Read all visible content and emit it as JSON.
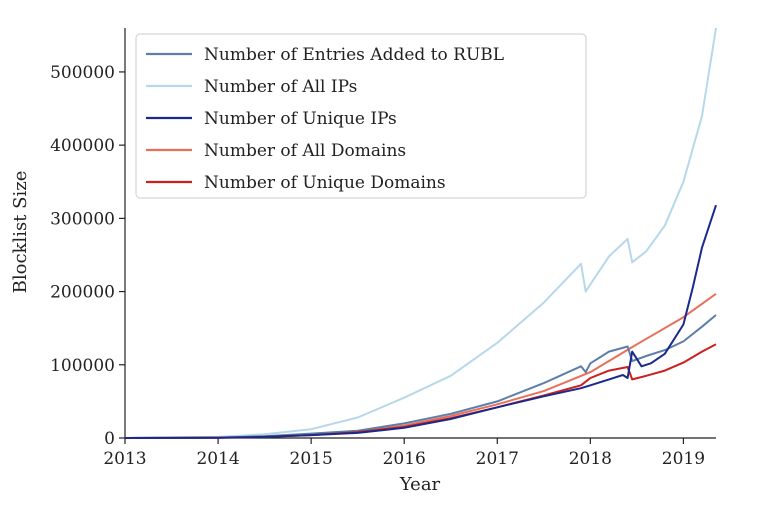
{
  "chart_data": {
    "type": "line",
    "xlabel": "Year",
    "ylabel": "Blocklist Size",
    "xlim": [
      2013.0,
      2019.35
    ],
    "ylim": [
      0,
      560000
    ],
    "xticks": [
      2013,
      2014,
      2015,
      2016,
      2017,
      2018,
      2019
    ],
    "xtick_labels": [
      "2013",
      "2014",
      "2015",
      "2016",
      "2017",
      "2018",
      "2019"
    ],
    "yticks": [
      0,
      100000,
      200000,
      300000,
      400000,
      500000
    ],
    "ytick_labels": [
      "0",
      "100000",
      "200000",
      "300000",
      "400000",
      "500000"
    ],
    "grid": false,
    "legend_position": "top-left",
    "series": [
      {
        "name": "Number of Entries Added to RUBL",
        "color": "#5b7fa8",
        "x": [
          2013.0,
          2014.0,
          2014.5,
          2015.0,
          2015.5,
          2016.0,
          2016.5,
          2017.0,
          2017.5,
          2017.9,
          2017.95,
          2018.0,
          2018.2,
          2018.4,
          2018.45,
          2018.6,
          2018.8,
          2019.0,
          2019.2,
          2019.35
        ],
        "y": [
          0,
          600,
          2500,
          6000,
          10000,
          20000,
          33000,
          50000,
          75000,
          98000,
          90000,
          102000,
          118000,
          125000,
          105000,
          112000,
          120000,
          132000,
          152000,
          168000
        ]
      },
      {
        "name": "Number of All IPs",
        "color": "#b7d7ea",
        "x": [
          2013.0,
          2014.0,
          2014.5,
          2015.0,
          2015.5,
          2016.0,
          2016.5,
          2017.0,
          2017.5,
          2017.9,
          2017.95,
          2018.0,
          2018.2,
          2018.4,
          2018.45,
          2018.6,
          2018.8,
          2019.0,
          2019.2,
          2019.35
        ],
        "y": [
          0,
          1500,
          5000,
          12000,
          28000,
          55000,
          85000,
          130000,
          185000,
          238000,
          200000,
          210000,
          248000,
          272000,
          240000,
          255000,
          290000,
          350000,
          440000,
          560000
        ]
      },
      {
        "name": "Number of Unique IPs",
        "color": "#1a2a8c",
        "x": [
          2013.0,
          2014.0,
          2014.5,
          2015.0,
          2015.5,
          2016.0,
          2016.5,
          2017.0,
          2017.5,
          2017.9,
          2018.0,
          2018.2,
          2018.35,
          2018.4,
          2018.45,
          2018.55,
          2018.65,
          2018.8,
          2019.0,
          2019.1,
          2019.2,
          2019.35
        ],
        "y": [
          0,
          400,
          1500,
          4000,
          7000,
          14000,
          26000,
          42000,
          57000,
          68000,
          72000,
          80000,
          86000,
          82000,
          118000,
          98000,
          102000,
          115000,
          155000,
          205000,
          260000,
          318000
        ]
      },
      {
        "name": "Number of All Domains",
        "color": "#e8705a",
        "x": [
          2013.0,
          2014.0,
          2014.5,
          2015.0,
          2015.5,
          2016.0,
          2016.5,
          2017.0,
          2017.5,
          2018.0,
          2018.5,
          2019.0,
          2019.35
        ],
        "y": [
          0,
          500,
          1800,
          4500,
          9000,
          17000,
          30000,
          46000,
          64000,
          90000,
          128000,
          165000,
          197000
        ]
      },
      {
        "name": "Number of Unique Domains",
        "color": "#cc1f1f",
        "x": [
          2013.0,
          2014.0,
          2014.5,
          2015.0,
          2015.5,
          2016.0,
          2016.5,
          2017.0,
          2017.5,
          2017.9,
          2018.0,
          2018.2,
          2018.4,
          2018.45,
          2018.6,
          2018.8,
          2019.0,
          2019.2,
          2019.35
        ],
        "y": [
          0,
          400,
          1500,
          4000,
          8000,
          15000,
          27000,
          42000,
          58000,
          72000,
          82000,
          92000,
          97000,
          80000,
          85000,
          92000,
          103000,
          118000,
          128000
        ]
      }
    ]
  }
}
